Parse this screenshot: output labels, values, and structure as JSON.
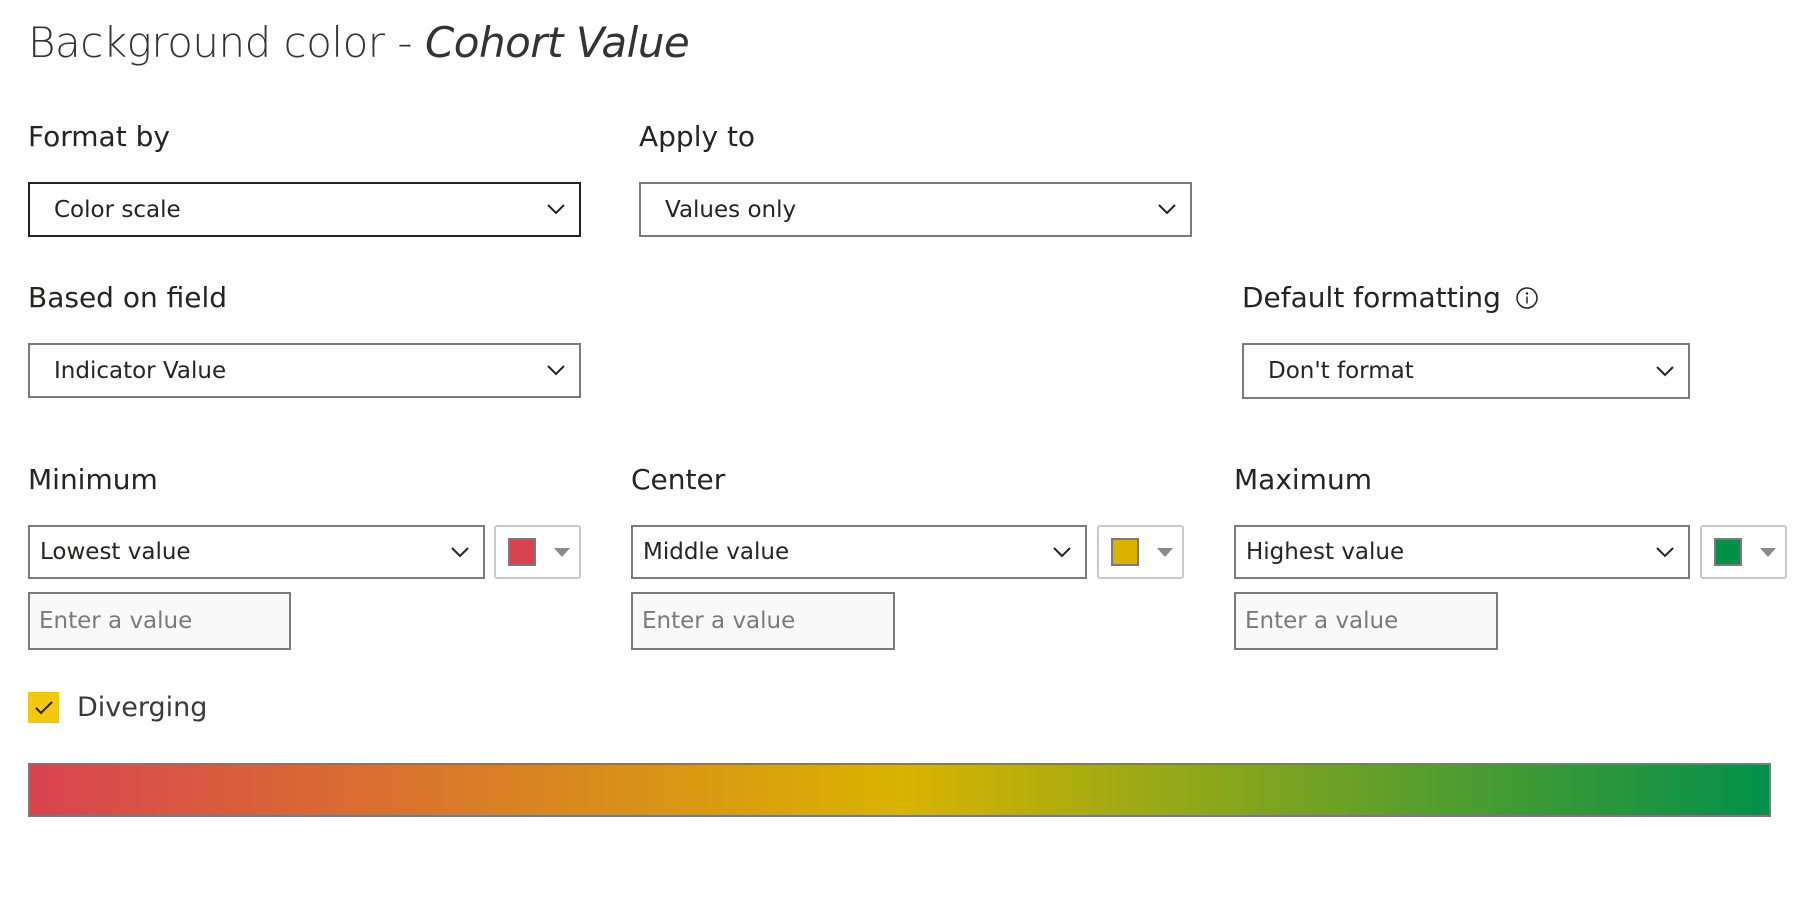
{
  "title": {
    "prefix": "Background color - ",
    "field": "Cohort Value"
  },
  "format_by": {
    "label": "Format by",
    "value": "Color scale"
  },
  "apply_to": {
    "label": "Apply to",
    "value": "Values only"
  },
  "based_on": {
    "label": "Based on field",
    "value": "Indicator Value"
  },
  "default_formatting": {
    "label": "Default formatting",
    "value": "Don't format",
    "icon": "info-icon"
  },
  "minimum": {
    "label": "Minimum",
    "value": "Lowest value",
    "color": "#d9434f",
    "placeholder": "Enter a value"
  },
  "center": {
    "label": "Center",
    "value": "Middle value",
    "color": "#d9b300",
    "placeholder": "Enter a value"
  },
  "maximum": {
    "label": "Maximum",
    "value": "Highest value",
    "color": "#01904a",
    "placeholder": "Enter a value"
  },
  "diverging": {
    "label": "Diverging",
    "checked": true,
    "color": "#f2c811"
  }
}
